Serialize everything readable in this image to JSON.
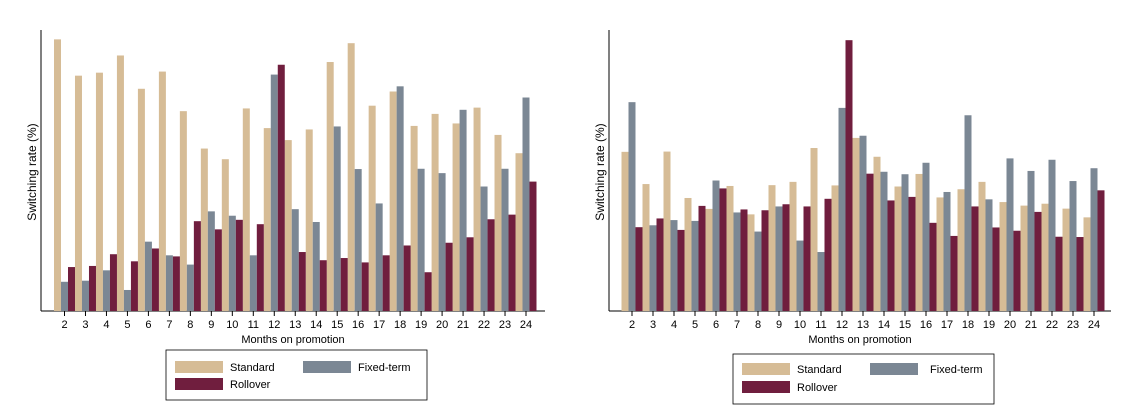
{
  "chart_data": [
    {
      "type": "bar",
      "xlabel": "Months on promotion",
      "ylabel": "Switching rate (%)",
      "ylim": [
        0,
        1
      ],
      "grid": false,
      "legend_position": "bottom",
      "categories": [
        "2",
        "3",
        "4",
        "5",
        "6",
        "7",
        "8",
        "9",
        "10",
        "11",
        "12",
        "13",
        "14",
        "15",
        "16",
        "17",
        "18",
        "19",
        "20",
        "21",
        "22",
        "23",
        "24"
      ],
      "series": [
        {
          "name": "Standard",
          "color": "#d6bc96",
          "values": [
            0.995,
            0.862,
            0.873,
            0.936,
            0.814,
            0.877,
            0.732,
            0.595,
            0.556,
            0.742,
            0.67,
            0.626,
            0.665,
            0.912,
            0.981,
            0.752,
            0.804,
            0.678,
            0.722,
            0.687,
            0.745,
            0.645,
            0.578
          ]
        },
        {
          "name": "Fixed-term",
          "color": "#7b8794",
          "values": [
            0.107,
            0.111,
            0.149,
            0.077,
            0.254,
            0.204,
            0.17,
            0.365,
            0.349,
            0.204,
            0.866,
            0.373,
            0.326,
            0.676,
            0.52,
            0.394,
            0.823,
            0.521,
            0.505,
            0.737,
            0.456,
            0.521,
            0.782
          ]
        },
        {
          "name": "Rollover",
          "color": "#701e3e",
          "values": [
            0.161,
            0.165,
            0.208,
            0.182,
            0.229,
            0.2,
            0.329,
            0.299,
            0.334,
            0.318,
            0.902,
            0.216,
            0.186,
            0.194,
            0.178,
            0.204,
            0.24,
            0.142,
            0.25,
            0.27,
            0.336,
            0.353,
            0.474
          ]
        }
      ]
    },
    {
      "type": "bar",
      "xlabel": "Months on promotion",
      "ylabel": "Switching rate (%)",
      "ylim": [
        0,
        1
      ],
      "grid": false,
      "legend_position": "bottom",
      "categories": [
        "2",
        "3",
        "4",
        "5",
        "6",
        "7",
        "8",
        "9",
        "10",
        "11",
        "12",
        "13",
        "14",
        "15",
        "16",
        "17",
        "18",
        "19",
        "20",
        "21",
        "22",
        "23",
        "24"
      ],
      "series": [
        {
          "name": "Standard",
          "color": "#d6bc96",
          "values": [
            0.583,
            0.465,
            0.584,
            0.414,
            0.374,
            0.458,
            0.354,
            0.461,
            0.473,
            0.597,
            0.46,
            0.634,
            0.565,
            0.456,
            0.502,
            0.416,
            0.446,
            0.473,
            0.399,
            0.386,
            0.393,
            0.375,
            0.343
          ]
        },
        {
          "name": "Fixed-term",
          "color": "#7b8794",
          "values": [
            0.765,
            0.314,
            0.333,
            0.33,
            0.478,
            0.361,
            0.291,
            0.383,
            0.258,
            0.216,
            0.744,
            0.642,
            0.51,
            0.501,
            0.543,
            0.436,
            0.717,
            0.409,
            0.559,
            0.513,
            0.554,
            0.476,
            0.523
          ]
        },
        {
          "name": "Rollover",
          "color": "#701e3e",
          "values": [
            0.307,
            0.339,
            0.297,
            0.385,
            0.449,
            0.372,
            0.369,
            0.391,
            0.383,
            0.411,
            0.992,
            0.503,
            0.405,
            0.418,
            0.323,
            0.275,
            0.383,
            0.306,
            0.294,
            0.363,
            0.272,
            0.271,
            0.442
          ]
        }
      ]
    }
  ]
}
